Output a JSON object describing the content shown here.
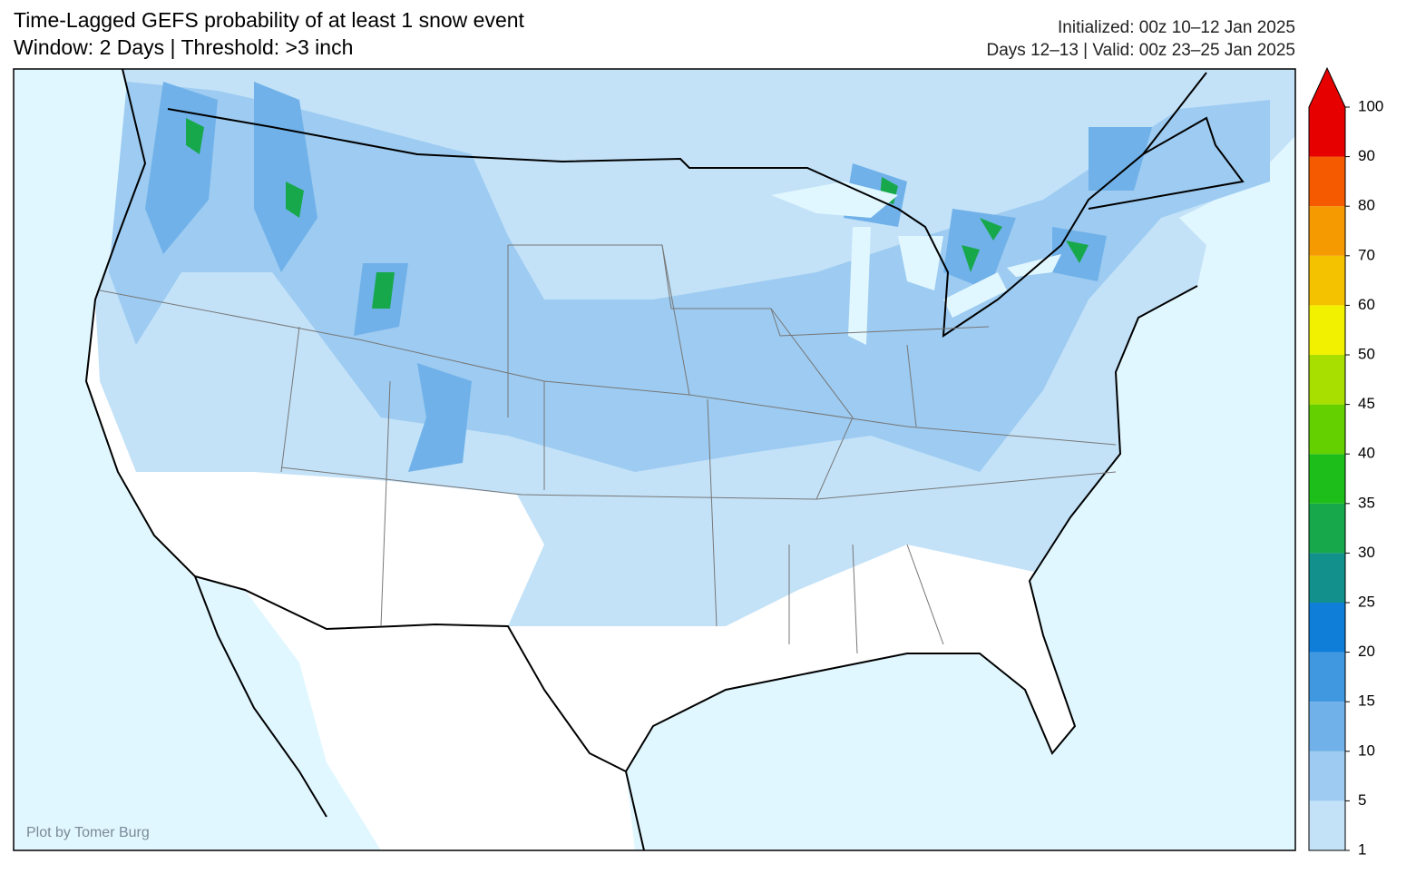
{
  "header": {
    "title": "Time-Lagged GEFS probability of at least 1 snow event",
    "subtitle": "Window: 2 Days | Threshold: >3 inch",
    "initialized": "Initialized: 00z 10–12 Jan 2025",
    "valid": "Days 12–13 | Valid: 00z 23–25 Jan 2025"
  },
  "map": {
    "credit": "Plot by Tomer Burg",
    "colorbar": {
      "levels": [
        1,
        5,
        10,
        15,
        20,
        25,
        30,
        35,
        40,
        45,
        50,
        60,
        70,
        80,
        90,
        100
      ],
      "colors": [
        "#c3e2f8",
        "#9dcbf1",
        "#70b1e9",
        "#3f98e0",
        "#0f7ed8",
        "#12908c",
        "#18a84c",
        "#1ebe1a",
        "#64d000",
        "#a9df00",
        "#f2f200",
        "#f5c200",
        "#f59a00",
        "#f55a00",
        "#e60000"
      ],
      "extend_color": "#e60000"
    }
  }
}
